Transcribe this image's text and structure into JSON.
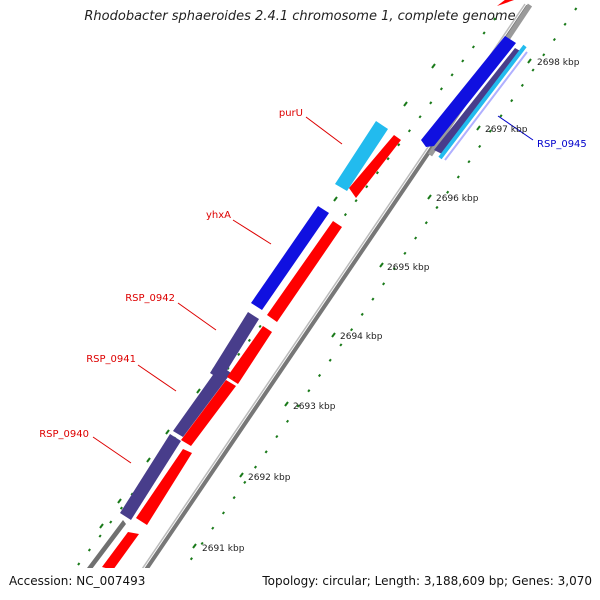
{
  "title": "Rhodobacter sphaeroides 2.4.1 chromosome 1, complete genome",
  "footer": {
    "accession": "Accession: NC_007493",
    "summary": "Topology: circular; Length: 3,188,609 bp; Genes: 3,070"
  },
  "colors": {
    "backbone": "#9a9a9a",
    "forward_cds": "#ff0000",
    "gene_blue": "#1010e0",
    "gene_slate": "#483d8b",
    "gene_cyan": "#22bbee",
    "gene_grey": "#707070",
    "tick_green": "#1a7a1a",
    "label_red": "#dd0000",
    "label_blue": "#0000cc"
  },
  "scale_ticks": [
    "2691 kbp",
    "2692 kbp",
    "2693 kbp",
    "2694 kbp",
    "2695 kbp",
    "2696 kbp",
    "2697 kbp",
    "2698 kbp"
  ],
  "gene_labels": [
    {
      "name": "purU",
      "color": "red"
    },
    {
      "name": "yhxA",
      "color": "red"
    },
    {
      "name": "RSP_0942",
      "color": "red"
    },
    {
      "name": "RSP_0941",
      "color": "red"
    },
    {
      "name": "RSP_0940",
      "color": "red"
    },
    {
      "name": "RSP_0945",
      "color": "blue"
    }
  ]
}
